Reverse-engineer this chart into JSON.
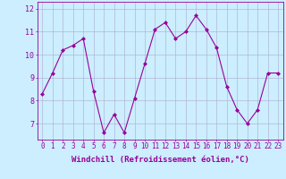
{
  "x": [
    0,
    1,
    2,
    3,
    4,
    5,
    6,
    7,
    8,
    9,
    10,
    11,
    12,
    13,
    14,
    15,
    16,
    17,
    18,
    19,
    20,
    21,
    22,
    23
  ],
  "y": [
    8.3,
    9.2,
    10.2,
    10.4,
    10.7,
    8.4,
    6.6,
    7.4,
    6.6,
    8.1,
    9.6,
    11.1,
    11.4,
    10.7,
    11.0,
    11.7,
    11.1,
    10.3,
    8.6,
    7.6,
    7.0,
    7.6,
    9.2,
    9.2
  ],
  "line_color": "#990099",
  "marker": "D",
  "marker_size": 2,
  "bg_color": "#cceeff",
  "grid_color": "#aaaacc",
  "xlabel": "Windchill (Refroidissement éolien,°C)",
  "xlim": [
    -0.5,
    23.5
  ],
  "ylim": [
    6.3,
    12.3
  ],
  "yticks": [
    7,
    8,
    9,
    10,
    11,
    12
  ],
  "xticks": [
    0,
    1,
    2,
    3,
    4,
    5,
    6,
    7,
    8,
    9,
    10,
    11,
    12,
    13,
    14,
    15,
    16,
    17,
    18,
    19,
    20,
    21,
    22,
    23
  ],
  "xtick_labels": [
    "0",
    "1",
    "2",
    "3",
    "4",
    "5",
    "6",
    "7",
    "8",
    "9",
    "10",
    "11",
    "12",
    "13",
    "14",
    "15",
    "16",
    "17",
    "18",
    "19",
    "20",
    "21",
    "22",
    "23"
  ],
  "tick_color": "#990099",
  "label_color": "#990099",
  "label_fontsize": 6.5,
  "tick_fontsize": 5.5
}
